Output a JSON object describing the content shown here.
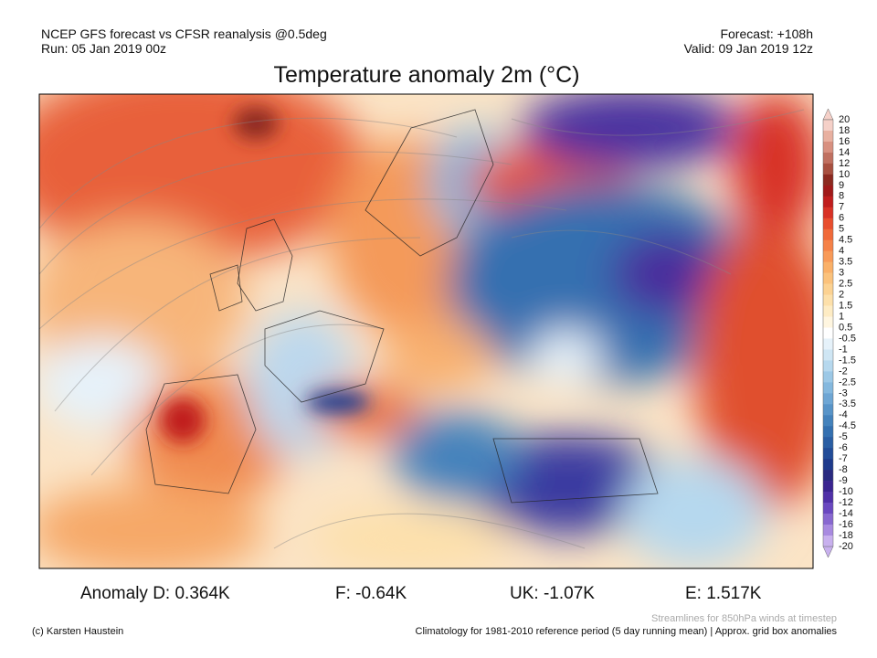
{
  "header": {
    "source": "NCEP GFS forecast vs CFSR reanalysis @0.5deg",
    "run": "Run: 05 Jan 2019 00z",
    "forecast": "Forecast: +108h",
    "valid": "Valid: 09 Jan 2019 12z",
    "title": "Temperature anomaly 2m (°C)"
  },
  "colorbar": {
    "levels": [
      20,
      18,
      16,
      14,
      12,
      10,
      9,
      8,
      7,
      6,
      5,
      4.5,
      4,
      3.5,
      3,
      2.5,
      2,
      1.5,
      1,
      0.5,
      -0.5,
      -1,
      -1.5,
      -2,
      -2.5,
      -3,
      -3.5,
      -4,
      -4.5,
      -5,
      -6,
      -7,
      -8,
      -9,
      -10,
      -12,
      -14,
      -16,
      -18,
      -20
    ],
    "colors": [
      "#f5d0c8",
      "#e8b0a0",
      "#d89080",
      "#c07060",
      "#a85040",
      "#8c2a20",
      "#a01a1a",
      "#c01e1e",
      "#d83226",
      "#e84e2e",
      "#f06a3a",
      "#f58248",
      "#f89a58",
      "#fab068",
      "#fbc27c",
      "#fcd292",
      "#fde0aa",
      "#feecc4",
      "#fff6e0",
      "#ffffff",
      "#e6f2fa",
      "#cfe6f4",
      "#b6d8ee",
      "#9cc8e6",
      "#84b8de",
      "#6ea6d4",
      "#5894c8",
      "#4482bc",
      "#3470b0",
      "#2a5ea4",
      "#224c98",
      "#1e3a8c",
      "#2a2a80",
      "#3a2490",
      "#5030a8",
      "#6a48c0",
      "#8868d0",
      "#a88ae0",
      "#c8b0ee"
    ]
  },
  "anomalies": [
    "Anomaly D: 0.364K",
    "F: -0.64K",
    "UK: -1.07K",
    "E: 1.517K"
  ],
  "footer": {
    "copyright": "(c) Karsten Haustein",
    "streamlines": "Streamlines for 850hPa winds at timestep",
    "climatology": "Climatology for 1981-2010 reference period (5 day running mean) | Approx. grid box anomalies"
  }
}
